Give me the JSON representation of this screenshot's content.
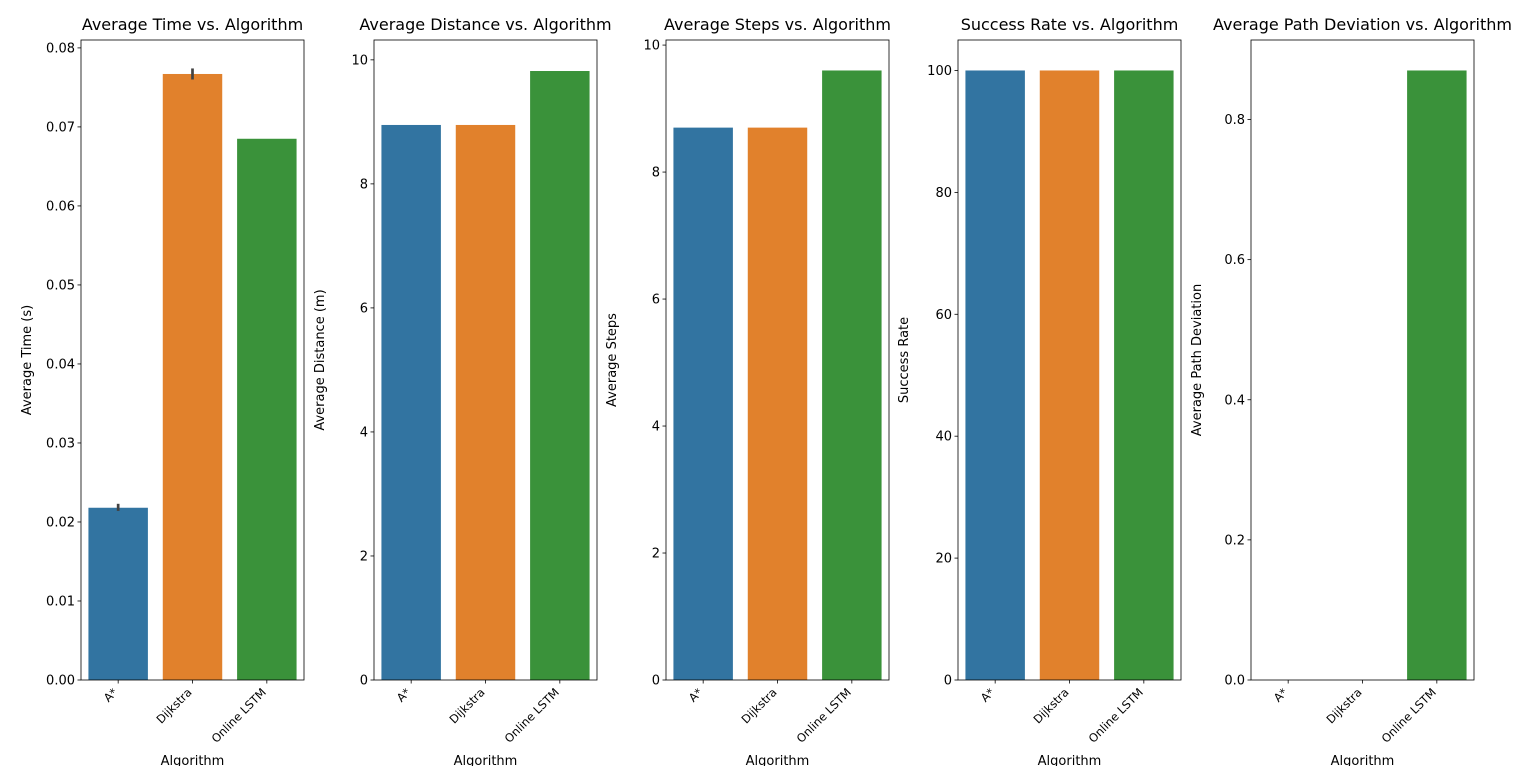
{
  "colors": {
    "A*": "#3274a1",
    "Dijkstra": "#e1812c",
    "Online LSTM": "#3a923a",
    "errorbar": "#424242"
  },
  "chart_data": [
    {
      "type": "bar",
      "title": "Average Time vs. Algorithm",
      "xlabel": "Algorithm",
      "ylabel": "Average Time (s)",
      "categories": [
        "A*",
        "Dijkstra",
        "Online LSTM"
      ],
      "values": [
        0.0218,
        0.0767,
        0.0685
      ],
      "error_bars": [
        [
          0.0214,
          0.0223
        ],
        [
          0.076,
          0.0774
        ],
        null
      ],
      "ylim": [
        0,
        0.081
      ],
      "yticks": [
        0,
        0.01,
        0.02,
        0.03,
        0.04,
        0.05,
        0.06,
        0.07,
        0.08
      ],
      "ytick_labels": [
        "0.00",
        "0.01",
        "0.02",
        "0.03",
        "0.04",
        "0.05",
        "0.06",
        "0.07",
        "0.08"
      ]
    },
    {
      "type": "bar",
      "title": "Average Distance vs. Algorithm",
      "xlabel": "Algorithm",
      "ylabel": "Average Distance (m)",
      "categories": [
        "A*",
        "Dijkstra",
        "Online LSTM"
      ],
      "values": [
        8.95,
        8.95,
        9.82
      ],
      "error_bars": [
        null,
        null,
        null
      ],
      "ylim": [
        0,
        10.32
      ],
      "yticks": [
        0,
        2,
        4,
        6,
        8,
        10
      ],
      "ytick_labels": [
        "0",
        "2",
        "4",
        "6",
        "8",
        "10"
      ]
    },
    {
      "type": "bar",
      "title": "Average Steps vs. Algorithm",
      "xlabel": "Algorithm",
      "ylabel": "Average Steps",
      "categories": [
        "A*",
        "Dijkstra",
        "Online LSTM"
      ],
      "values": [
        8.7,
        8.7,
        9.6
      ],
      "error_bars": [
        null,
        null,
        null
      ],
      "ylim": [
        0,
        10.08
      ],
      "yticks": [
        0,
        2,
        4,
        6,
        8,
        10
      ],
      "ytick_labels": [
        "0",
        "2",
        "4",
        "6",
        "8",
        "10"
      ]
    },
    {
      "type": "bar",
      "title": "Success Rate vs. Algorithm",
      "xlabel": "Algorithm",
      "ylabel": "Success Rate",
      "categories": [
        "A*",
        "Dijkstra",
        "Online LSTM"
      ],
      "values": [
        100,
        100,
        100
      ],
      "error_bars": [
        null,
        null,
        null
      ],
      "ylim": [
        0,
        105
      ],
      "yticks": [
        0,
        20,
        40,
        60,
        80,
        100
      ],
      "ytick_labels": [
        "0",
        "20",
        "40",
        "60",
        "80",
        "100"
      ]
    },
    {
      "type": "bar",
      "title": "Average Path Deviation vs. Algorithm",
      "xlabel": "Algorithm",
      "ylabel": "Average Path Deviation",
      "categories": [
        "A*",
        "Dijkstra",
        "Online LSTM"
      ],
      "values": [
        0,
        0,
        0.87
      ],
      "error_bars": [
        null,
        null,
        null
      ],
      "ylim": [
        0,
        0.9135
      ],
      "yticks": [
        0,
        0.2,
        0.4,
        0.6,
        0.8
      ],
      "ytick_labels": [
        "0.0",
        "0.2",
        "0.4",
        "0.6",
        "0.8"
      ]
    }
  ]
}
